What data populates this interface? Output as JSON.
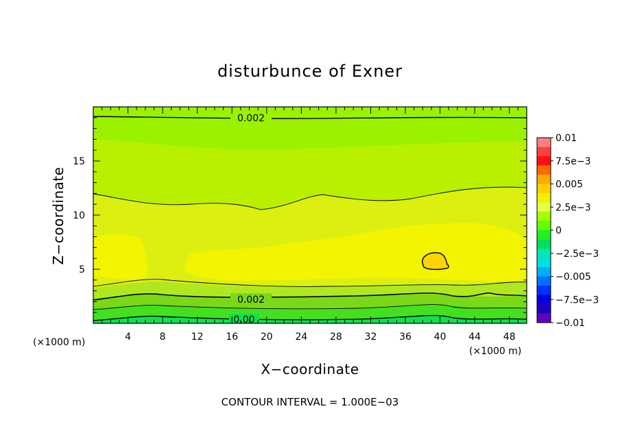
{
  "chart_data": {
    "type": "heatmap",
    "title": "disturbunce of Exner",
    "xlabel": "X−coordinate",
    "ylabel": "Z−coordinate",
    "x_unit": "(×1000 m)",
    "y_unit": "(×1000 m)",
    "xlim": [
      0,
      50
    ],
    "ylim": [
      0,
      20
    ],
    "x_ticks": [
      "4",
      "8",
      "12",
      "16",
      "20",
      "24",
      "28",
      "32",
      "36",
      "40",
      "44",
      "48"
    ],
    "y_ticks": [
      "5",
      "10",
      "15"
    ],
    "contour_interval_note": "CONTOUR INTERVAL = 1.000E−03",
    "contour_labels": [
      "0.002",
      "0.002",
      "0.00"
    ],
    "colorbar": {
      "labels": [
        "0.01",
        "7.5e−3",
        "0.005",
        "2.5e−3",
        "0",
        "−2.5e−3",
        "−0.005",
        "−7.5e−3",
        "−0.01"
      ],
      "colors": [
        "#ff8080",
        "#ff4040",
        "#ff1010",
        "#ff6a00",
        "#ffaa00",
        "#ffd000",
        "#f0f000",
        "#e6ff40",
        "#a0ff00",
        "#60ff00",
        "#20f020",
        "#00e060",
        "#00e8b0",
        "#00e0e0",
        "#00b0ff",
        "#0070ff",
        "#0030ff",
        "#0000e0",
        "#2000c0",
        "#6000c0"
      ]
    }
  }
}
